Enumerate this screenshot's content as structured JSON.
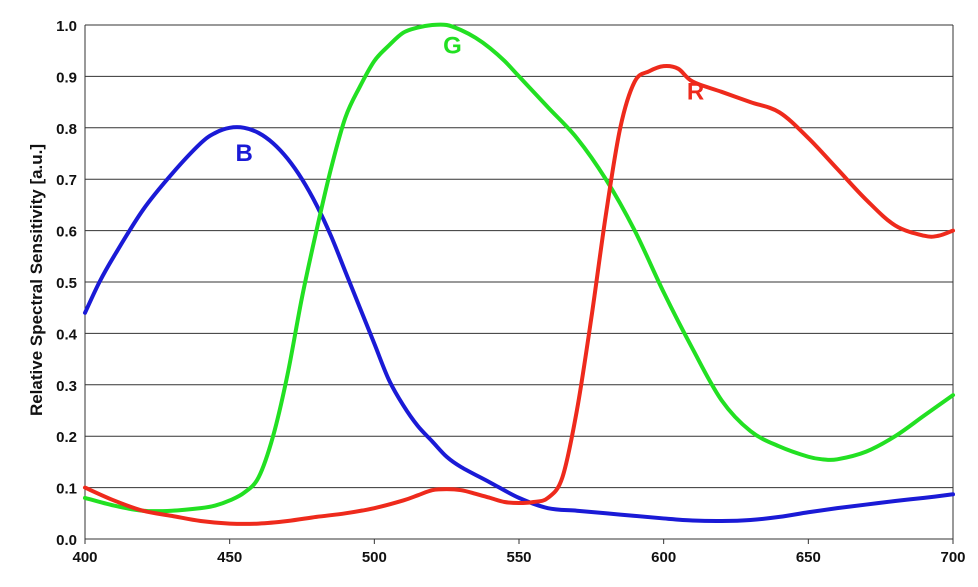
{
  "chart_data": {
    "type": "line",
    "title": "",
    "xlabel": "",
    "ylabel": "Relative Spectral Sensitivity  [a.u.]",
    "xlim": [
      400,
      700
    ],
    "ylim": [
      0.0,
      1.0
    ],
    "xticks": [
      "400",
      "450",
      "500",
      "550",
      "600",
      "650",
      "700"
    ],
    "yticks": [
      "0.0",
      "0.1",
      "0.2",
      "0.3",
      "0.4",
      "0.5",
      "0.6",
      "0.7",
      "0.8",
      "0.9",
      "1.0"
    ],
    "grid": "horizontal",
    "series": [
      {
        "name": "B",
        "color": "#1a1ad6",
        "label_at": [
          455,
          0.735
        ],
        "x": [
          400,
          405,
          410,
          420,
          430,
          440,
          445,
          450,
          455,
          460,
          465,
          470,
          475,
          480,
          485,
          490,
          495,
          500,
          505,
          510,
          515,
          520,
          525,
          530,
          540,
          550,
          560,
          570,
          580,
          590,
          600,
          610,
          620,
          630,
          640,
          650,
          660,
          670,
          680,
          690,
          700
        ],
        "values": [
          0.44,
          0.5,
          0.55,
          0.64,
          0.71,
          0.77,
          0.79,
          0.8,
          0.8,
          0.79,
          0.77,
          0.74,
          0.7,
          0.65,
          0.59,
          0.52,
          0.45,
          0.38,
          0.31,
          0.26,
          0.22,
          0.19,
          0.16,
          0.14,
          0.11,
          0.08,
          0.06,
          0.055,
          0.05,
          0.045,
          0.04,
          0.036,
          0.035,
          0.037,
          0.043,
          0.052,
          0.06,
          0.067,
          0.074,
          0.08,
          0.087
        ]
      },
      {
        "name": "G",
        "color": "#22e022",
        "label_at": [
          527,
          0.945
        ],
        "x": [
          400,
          410,
          420,
          430,
          440,
          445,
          450,
          455,
          460,
          465,
          470,
          475,
          480,
          485,
          490,
          495,
          500,
          505,
          510,
          515,
          520,
          525,
          530,
          535,
          540,
          545,
          550,
          560,
          570,
          580,
          590,
          600,
          610,
          620,
          630,
          640,
          650,
          655,
          660,
          670,
          680,
          690,
          700
        ],
        "values": [
          0.08,
          0.065,
          0.055,
          0.055,
          0.06,
          0.065,
          0.075,
          0.09,
          0.12,
          0.2,
          0.32,
          0.47,
          0.6,
          0.72,
          0.82,
          0.88,
          0.93,
          0.96,
          0.985,
          0.995,
          1.0,
          1.0,
          0.99,
          0.975,
          0.955,
          0.93,
          0.9,
          0.84,
          0.78,
          0.7,
          0.6,
          0.48,
          0.37,
          0.27,
          0.21,
          0.18,
          0.16,
          0.155,
          0.155,
          0.17,
          0.2,
          0.24,
          0.28
        ]
      },
      {
        "name": "R",
        "color": "#ee2a1c",
        "label_at": [
          611,
          0.855
        ],
        "x": [
          400,
          410,
          420,
          430,
          440,
          450,
          460,
          470,
          480,
          490,
          500,
          510,
          515,
          520,
          525,
          530,
          535,
          540,
          545,
          550,
          555,
          560,
          565,
          570,
          575,
          580,
          585,
          590,
          595,
          600,
          605,
          610,
          620,
          630,
          640,
          650,
          660,
          670,
          680,
          690,
          695,
          700
        ],
        "values": [
          0.1,
          0.075,
          0.055,
          0.045,
          0.035,
          0.03,
          0.03,
          0.035,
          0.043,
          0.05,
          0.06,
          0.075,
          0.085,
          0.095,
          0.097,
          0.095,
          0.088,
          0.08,
          0.072,
          0.07,
          0.072,
          0.08,
          0.12,
          0.25,
          0.43,
          0.63,
          0.8,
          0.89,
          0.91,
          0.92,
          0.915,
          0.89,
          0.87,
          0.85,
          0.83,
          0.78,
          0.72,
          0.66,
          0.61,
          0.59,
          0.59,
          0.6
        ]
      }
    ]
  }
}
